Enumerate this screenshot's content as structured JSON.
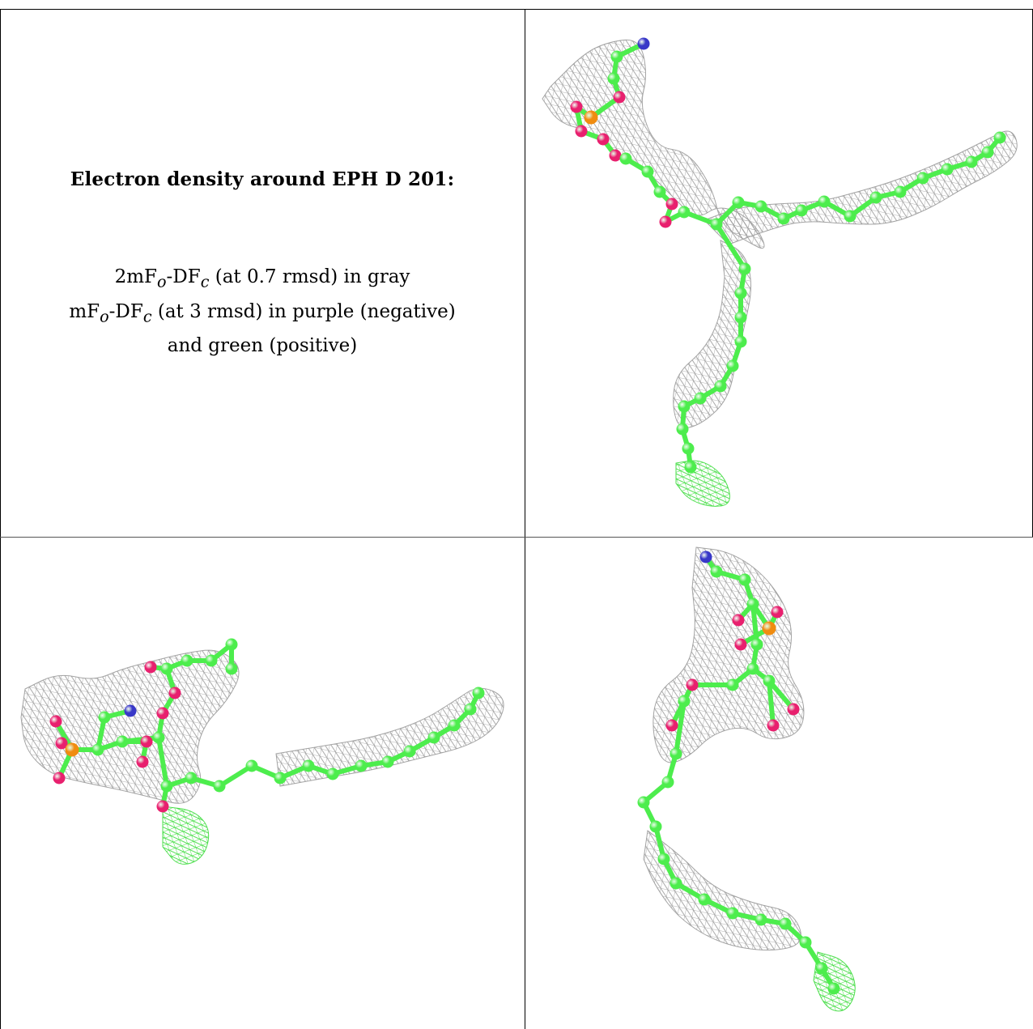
{
  "caption": {
    "title": "Electron density around EPH D 201:",
    "line1": {
      "a": "2mF",
      "sub1": "o",
      "b": "-DF",
      "sub2": "c",
      "c": " (at 0.7 rmsd) in gray"
    },
    "line2": {
      "a": "mF",
      "sub1": "o",
      "b": "-DF",
      "sub2": "c",
      "c": " (at 3 rmsd) in purple (negative)"
    },
    "line3": "and green (positive)"
  },
  "colors": {
    "carbon": "#4ded4d",
    "oxygen": "#e8206e",
    "phosphorus": "#f08c10",
    "nitrogen": "#3838c8",
    "mesh_gray": "#9a9a9a",
    "mesh_green": "#3cdc3c"
  },
  "views": [
    {
      "name": "view-1"
    },
    {
      "name": "view-2"
    },
    {
      "name": "view-3"
    }
  ]
}
